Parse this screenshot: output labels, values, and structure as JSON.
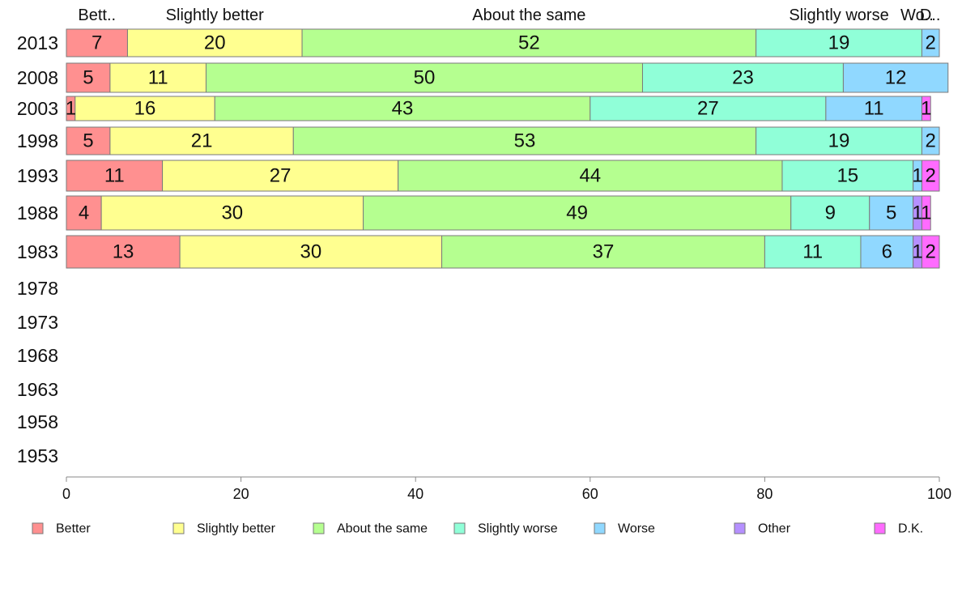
{
  "chart_data": {
    "type": "bar",
    "orientation": "horizontal",
    "stacked": true,
    "categories": [
      "2013",
      "2008",
      "2003",
      "1998",
      "1993",
      "1988",
      "1983",
      "1978",
      "1973",
      "1968",
      "1963",
      "1958",
      "1953"
    ],
    "series": [
      {
        "name": "Better",
        "color": "#ff9090",
        "values": [
          7,
          5,
          1,
          5,
          11,
          4,
          13,
          null,
          null,
          null,
          null,
          null,
          null
        ]
      },
      {
        "name": "Slightly better",
        "color": "#ffff90",
        "values": [
          20,
          11,
          16,
          21,
          27,
          30,
          30,
          null,
          null,
          null,
          null,
          null,
          null
        ]
      },
      {
        "name": "About the same",
        "color": "#b5ff90",
        "values": [
          52,
          50,
          43,
          53,
          44,
          49,
          37,
          null,
          null,
          null,
          null,
          null,
          null
        ]
      },
      {
        "name": "Slightly worse",
        "color": "#90ffd8",
        "values": [
          19,
          23,
          27,
          19,
          15,
          9,
          11,
          null,
          null,
          null,
          null,
          null,
          null
        ]
      },
      {
        "name": "Worse",
        "color": "#90d8ff",
        "values": [
          2,
          12,
          11,
          2,
          1,
          5,
          6,
          null,
          null,
          null,
          null,
          null,
          null
        ]
      },
      {
        "name": "Other",
        "color": "#b590ff",
        "values": [
          0,
          0,
          0,
          0,
          0,
          1,
          1,
          null,
          null,
          null,
          null,
          null,
          null
        ]
      },
      {
        "name": "D.K.",
        "color": "#ff6bff",
        "values": [
          0,
          0,
          1,
          0,
          2,
          1,
          2,
          null,
          null,
          null,
          null,
          null,
          null
        ]
      }
    ],
    "segment_labels": [
      [
        "7",
        "20",
        "52",
        "19",
        "2",
        "",
        ""
      ],
      [
        "5",
        "11",
        "50",
        "23",
        "12",
        "",
        ""
      ],
      [
        "1",
        "16",
        "43",
        "27",
        "11",
        "",
        "1"
      ],
      [
        "5",
        "21",
        "53",
        "19",
        "2",
        "",
        ""
      ],
      [
        "11",
        "27",
        "44",
        "15",
        "1",
        "",
        "2"
      ],
      [
        "4",
        "30",
        "49",
        "9",
        "5",
        "1",
        "1"
      ],
      [
        "13",
        "30",
        "37",
        "11",
        "6",
        "1",
        "2"
      ]
    ],
    "top_labels": [
      "Bett..",
      "Slightly better",
      "About the same",
      "Slightly worse",
      "Wo..",
      "",
      "D.."
    ],
    "xlim": [
      0,
      100
    ],
    "xticks": [
      "0",
      "20",
      "40",
      "60",
      "80",
      "100"
    ],
    "grid": false,
    "legend_position": "bottom"
  }
}
